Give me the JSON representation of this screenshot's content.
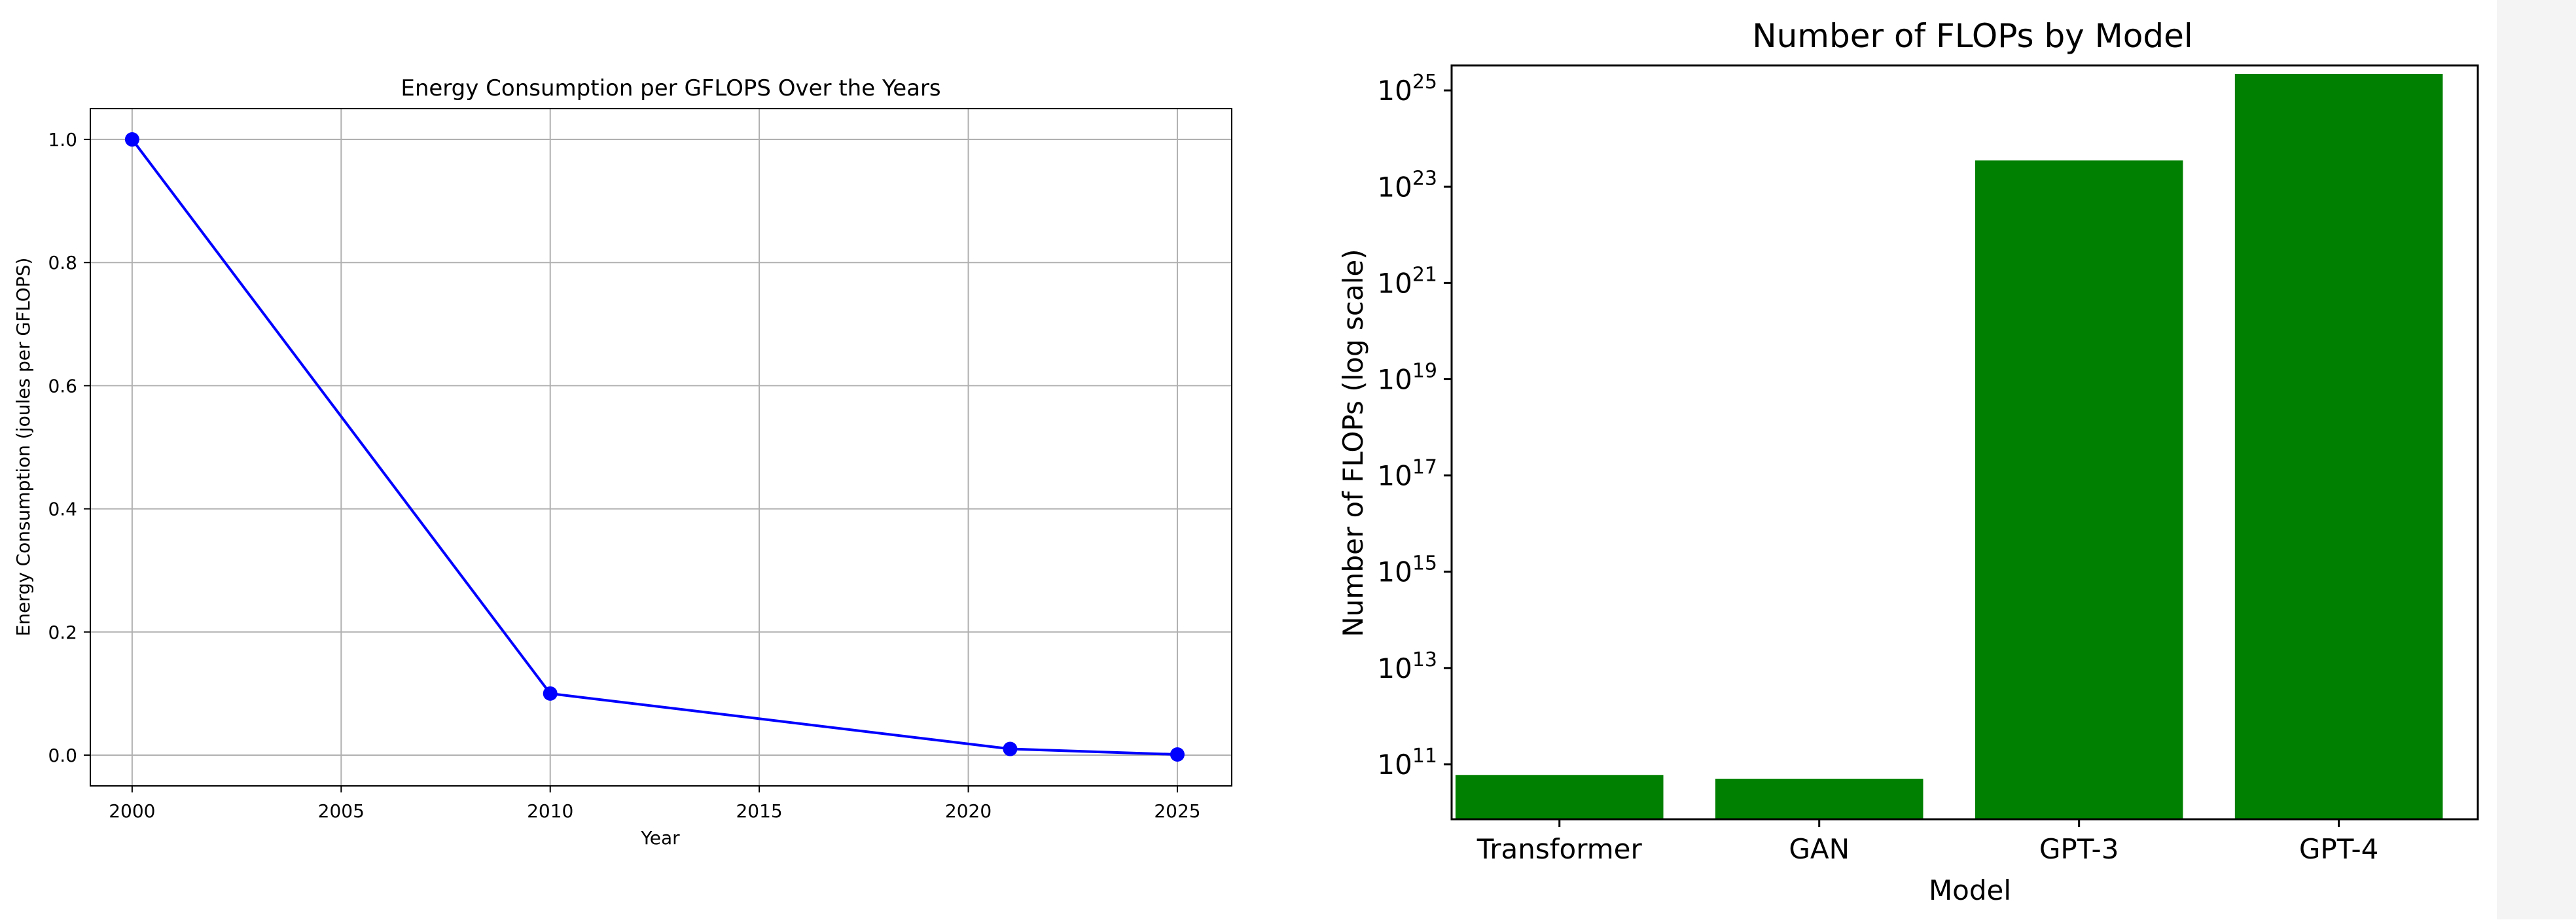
{
  "chart_data": [
    {
      "type": "line",
      "title": "Energy Consumption per GFLOPS Over the Years",
      "xlabel": "Year",
      "ylabel": "Energy Consumption (joules per GFLOPS)",
      "x": [
        2000,
        2010,
        2021,
        2025
      ],
      "series": [
        {
          "values": [
            1.0,
            0.1,
            0.01,
            0.001
          ]
        }
      ],
      "xlim": [
        1999,
        2026.3
      ],
      "ylim": [
        -0.05,
        1.05
      ],
      "xticks": [
        2000,
        2005,
        2010,
        2015,
        2020,
        2025
      ],
      "xtick_labels": [
        "2000",
        "2005",
        "2010",
        "2015",
        "2020",
        "2025"
      ],
      "yticks": [
        0.0,
        0.2,
        0.4,
        0.6,
        0.8,
        1.0
      ],
      "ytick_labels": [
        "0.0",
        "0.2",
        "0.4",
        "0.6",
        "0.8",
        "1.0"
      ],
      "grid": true,
      "marker": "circle",
      "color": "#0000ff"
    },
    {
      "type": "bar",
      "title": "Number of FLOPs by Model",
      "xlabel": "Model",
      "ylabel": "Number of FLOPs (log scale)",
      "categories": [
        "Transformer",
        "GAN",
        "GPT-3",
        "GPT-4"
      ],
      "values": [
        60000000000.0,
        50000000000.0,
        3.5e+23,
        2.2e+25
      ],
      "yscale": "log",
      "ylim": [
        7200000000.0,
        3.3e+25
      ],
      "yticks": [
        100000000000.0,
        10000000000000.0,
        1000000000000000.0,
        1e+17,
        1e+19,
        1e+21,
        1e+23,
        1e+25
      ],
      "ytick_labels": [
        {
          "base": "10",
          "exp": "11"
        },
        {
          "base": "10",
          "exp": "13"
        },
        {
          "base": "10",
          "exp": "15"
        },
        {
          "base": "10",
          "exp": "17"
        },
        {
          "base": "10",
          "exp": "19"
        },
        {
          "base": "10",
          "exp": "21"
        },
        {
          "base": "10",
          "exp": "23"
        },
        {
          "base": "10",
          "exp": "25"
        }
      ],
      "grid": false,
      "color": "#008000"
    }
  ]
}
